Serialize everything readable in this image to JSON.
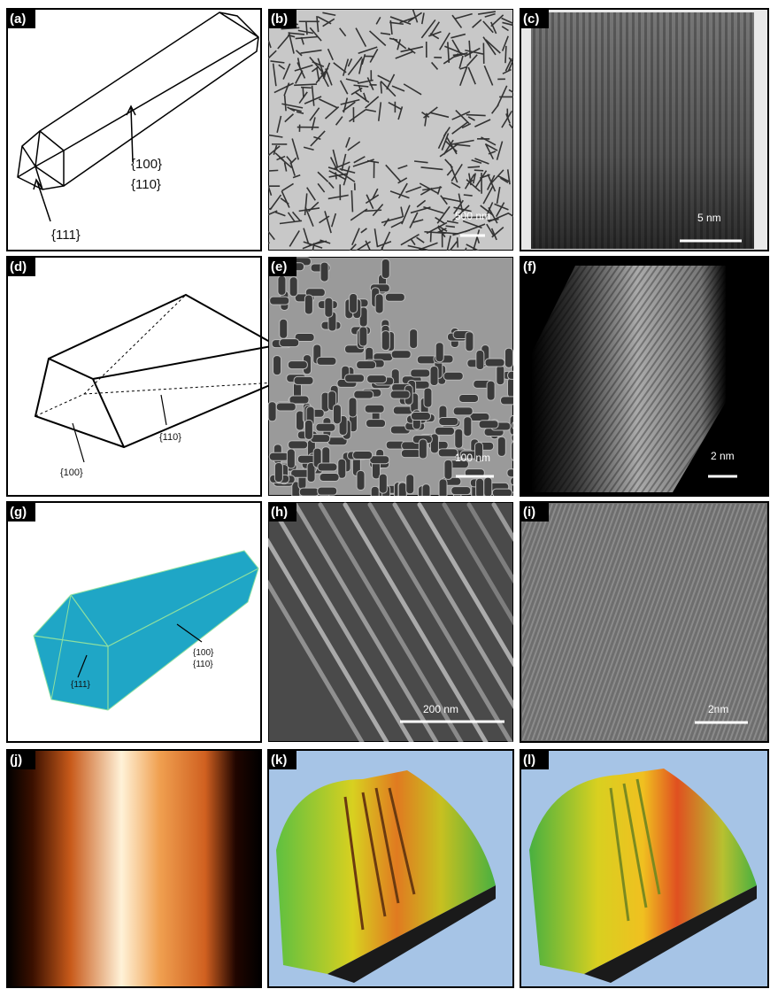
{
  "panels": [
    {
      "label": "(a)",
      "annotations": [
        "{100}",
        "{110}",
        "{111}"
      ]
    },
    {
      "label": "(b)",
      "scale_bar": "500 nm"
    },
    {
      "label": "(c)",
      "scale_bar": "5 nm"
    },
    {
      "label": "(d)",
      "annotations": [
        "{110}",
        "{100}"
      ]
    },
    {
      "label": "(e)",
      "scale_bar": "100 nm"
    },
    {
      "label": "(f)",
      "scale_bar": "2 nm"
    },
    {
      "label": "(g)",
      "annotations": [
        "{100}",
        "{110}",
        "{111}"
      ]
    },
    {
      "label": "(h)",
      "scale_bar": "200 nm"
    },
    {
      "label": "(i)",
      "scale_bar": "2nm"
    },
    {
      "label": "(j)"
    },
    {
      "label": "(k)"
    },
    {
      "label": "(l)"
    }
  ]
}
